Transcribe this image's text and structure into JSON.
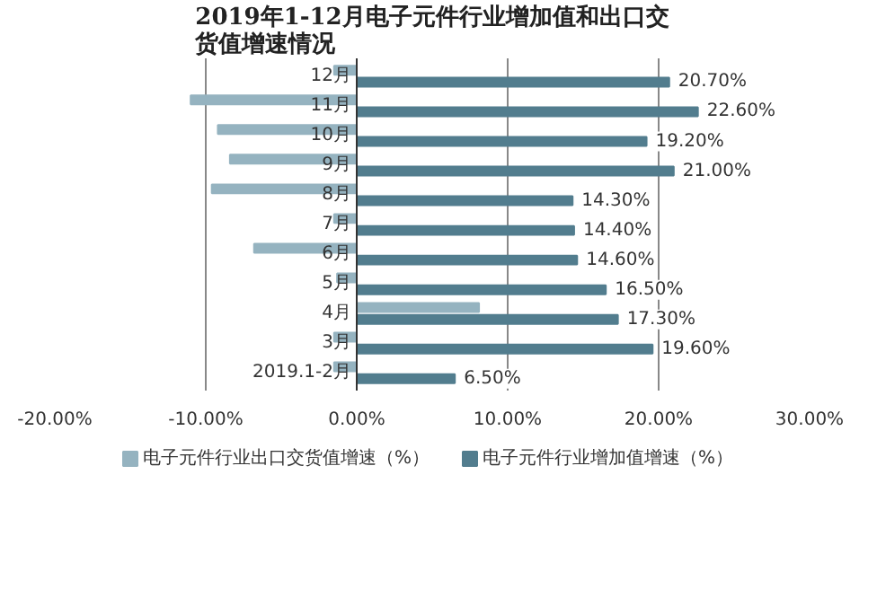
{
  "chart_data": {
    "type": "bar",
    "orientation": "horizontal",
    "title": "2019年1-12月电子元件行业增加值和出口交货值增速情况",
    "categories": [
      "12月",
      "11月",
      "10月",
      "9月",
      "8月",
      "7月",
      "6月",
      "5月",
      "4月",
      "3月",
      "2019.1-2月"
    ],
    "series": [
      {
        "name": "电子元件行业出口交货值增速（%）",
        "color": "#95b3c0",
        "values": [
          -1.5,
          -11.0,
          -9.2,
          -8.4,
          -9.6,
          -1.5,
          -6.8,
          -1.3,
          8.1,
          -1.5,
          -1.5
        ]
      },
      {
        "name": "电子元件行业增加值增速（%）",
        "color": "#527d8e",
        "values": [
          20.7,
          22.6,
          19.2,
          21.0,
          14.3,
          14.4,
          14.6,
          16.5,
          17.3,
          19.6,
          6.5
        ],
        "value_labels": [
          "20.70%",
          "22.60%",
          "19.20%",
          "21.00%",
          "14.30%",
          "14.40%",
          "14.60%",
          "16.50%",
          "17.30%",
          "19.60%",
          "6.50%"
        ]
      }
    ],
    "xlim": [
      -20,
      30
    ],
    "xticks": [
      {
        "value": -20,
        "label": "-20.00%"
      },
      {
        "value": -10,
        "label": "-10.00%"
      },
      {
        "value": 0,
        "label": "0.00%"
      },
      {
        "value": 10,
        "label": "10.00%"
      },
      {
        "value": 20,
        "label": "20.00%"
      },
      {
        "value": 30,
        "label": "30.00%"
      }
    ],
    "grid": "x",
    "legend": "bottom"
  }
}
